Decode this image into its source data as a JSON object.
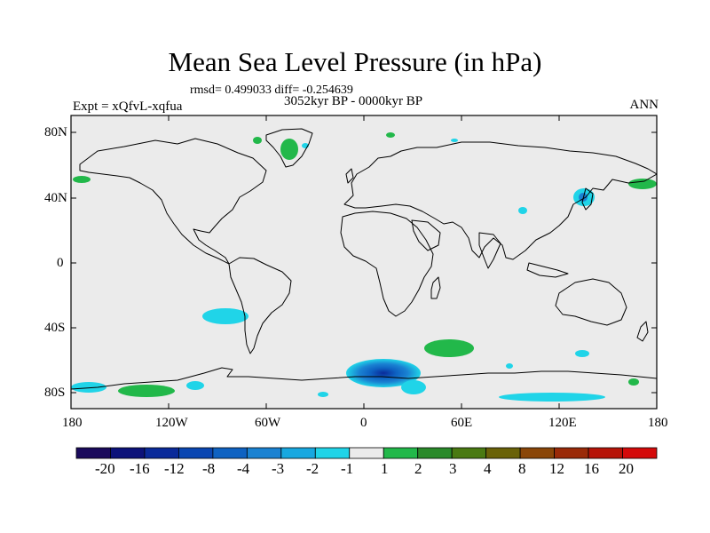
{
  "title": "Mean Sea Level Pressure (in hPa)",
  "stats": "rmsd= 0.499033 diff= -0.254639",
  "period": "3052kyr BP - 0000kyr BP",
  "experiment": "Expt = xQfvL-xqfua",
  "season": "ANN",
  "lat_ticks": [
    "80N",
    "40N",
    "0",
    "40S",
    "80S"
  ],
  "lon_ticks": [
    "180",
    "120W",
    "60W",
    "0",
    "60E",
    "120E",
    "180"
  ],
  "colorbar": {
    "labels": [
      "-20",
      "-16",
      "-12",
      "-8",
      "-4",
      "-3",
      "-2",
      "-1",
      "1",
      "2",
      "3",
      "4",
      "8",
      "12",
      "16",
      "20"
    ],
    "colors": [
      "#1a0a5c",
      "#0c127a",
      "#0a2a9a",
      "#0a46b2",
      "#0e62c2",
      "#1a82d2",
      "#18a8e0",
      "#20d4e8",
      "#ebebeb",
      "#22b84a",
      "#2a8a2a",
      "#4a7a12",
      "#6a6208",
      "#8a4608",
      "#9a2a08",
      "#b61408",
      "#d40a0a"
    ]
  },
  "colors": {
    "background": "#ebebeb",
    "negative_small": "#20d4e8",
    "negative_mid": "#1a82d2",
    "negative_deep": "#0a2a9a",
    "positive_small": "#22b84a"
  }
}
